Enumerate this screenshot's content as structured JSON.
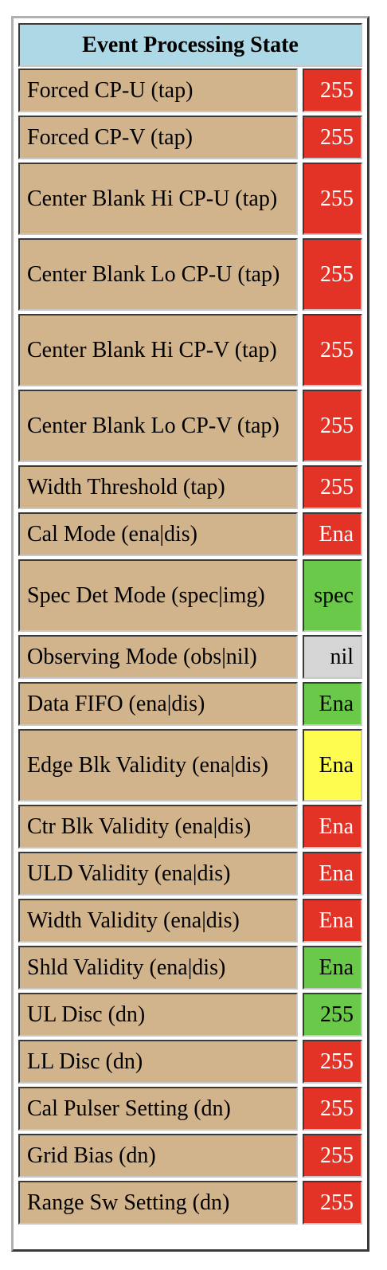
{
  "title": "Event Processing State",
  "colors": {
    "header_bg": "#add8e6",
    "label_bg": "#d2b48c",
    "red": "#e33226",
    "green": "#6bc94a",
    "yellow": "#fdfc4f",
    "gray": "#d5d5d5"
  },
  "rows": [
    {
      "label": "Forced CP-U (tap)",
      "value": "255",
      "status": "red"
    },
    {
      "label": "Forced CP-V (tap)",
      "value": "255",
      "status": "red"
    },
    {
      "label": "Center Blank Hi CP-U (tap)",
      "value": "255",
      "status": "red"
    },
    {
      "label": "Center Blank Lo CP-U (tap)",
      "value": "255",
      "status": "red"
    },
    {
      "label": "Center Blank Hi CP-V (tap)",
      "value": "255",
      "status": "red"
    },
    {
      "label": "Center Blank Lo CP-V (tap)",
      "value": "255",
      "status": "red"
    },
    {
      "label": "Width Threshold (tap)",
      "value": "255",
      "status": "red"
    },
    {
      "label": "Cal Mode (ena|dis)",
      "value": "Ena",
      "status": "red"
    },
    {
      "label": "Spec Det Mode (spec|img)",
      "value": "spec",
      "status": "green"
    },
    {
      "label": "Observing Mode (obs|nil)",
      "value": "nil",
      "status": "gray"
    },
    {
      "label": "Data FIFO (ena|dis)",
      "value": "Ena",
      "status": "green"
    },
    {
      "label": "Edge Blk Validity (ena|dis)",
      "value": "Ena",
      "status": "yellow"
    },
    {
      "label": "Ctr Blk Validity (ena|dis)",
      "value": "Ena",
      "status": "red"
    },
    {
      "label": "ULD Validity (ena|dis)",
      "value": "Ena",
      "status": "red"
    },
    {
      "label": "Width Validity (ena|dis)",
      "value": "Ena",
      "status": "red"
    },
    {
      "label": "Shld Validity (ena|dis)",
      "value": "Ena",
      "status": "green"
    },
    {
      "label": "UL Disc (dn)",
      "value": "255",
      "status": "green"
    },
    {
      "label": "LL Disc (dn)",
      "value": "255",
      "status": "red"
    },
    {
      "label": "Cal Pulser Setting (dn)",
      "value": "255",
      "status": "red"
    },
    {
      "label": "Grid Bias (dn)",
      "value": "255",
      "status": "red"
    },
    {
      "label": "Range Sw Setting (dn)",
      "value": "255",
      "status": "red"
    }
  ]
}
